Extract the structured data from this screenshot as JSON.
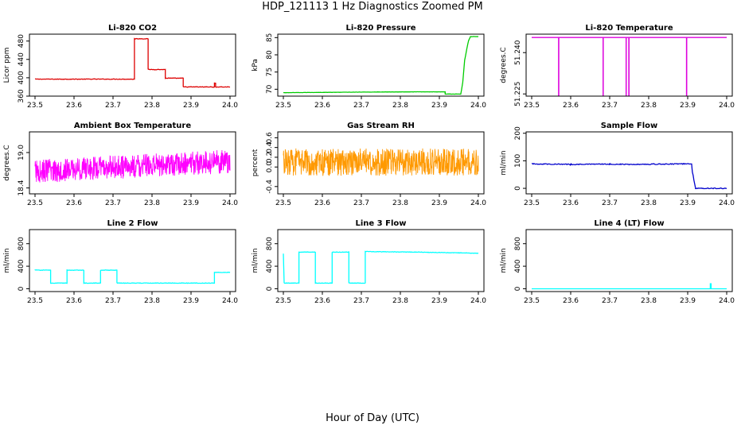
{
  "page": {
    "title": "HDP_121113  1 Hz Diagnostics Zoomed PM",
    "xlabel": "Hour of Day (UTC)"
  },
  "chart_data": [
    {
      "type": "line",
      "title": "Li-820 CO2",
      "ylabel": "Licor ppm",
      "color": "#dd0000",
      "xlim": [
        23.5,
        24.0
      ],
      "ylim": [
        360,
        495
      ],
      "yticks": [
        360,
        400,
        440,
        480
      ],
      "xticks": [
        23.5,
        23.6,
        23.7,
        23.8,
        23.9,
        24.0
      ],
      "noise": 0.6,
      "mode": "line",
      "x": [
        23.5,
        23.755,
        23.755,
        23.79,
        23.79,
        23.834,
        23.834,
        23.88,
        23.88,
        23.96,
        23.96,
        23.963,
        23.963,
        24.0
      ],
      "y": [
        397,
        397,
        485,
        485,
        418,
        418,
        399,
        399,
        380,
        380,
        388,
        388,
        380,
        380
      ]
    },
    {
      "type": "line",
      "title": "Li-820 Pressure",
      "ylabel": "kPa",
      "color": "#00cc00",
      "xlim": [
        23.5,
        24.0
      ],
      "ylim": [
        68,
        86
      ],
      "yticks": [
        70,
        75,
        80,
        85
      ],
      "xticks": [
        23.5,
        23.6,
        23.7,
        23.8,
        23.9,
        24.0
      ],
      "noise": 0.03,
      "mode": "line",
      "x": [
        23.5,
        23.67,
        23.84,
        23.915,
        23.915,
        23.955,
        23.96,
        23.965,
        23.97,
        23.975,
        23.98,
        24.0
      ],
      "y": [
        69.0,
        69.15,
        69.25,
        69.25,
        68.6,
        68.6,
        72.0,
        78.5,
        81.5,
        84.2,
        85.3,
        85.3
      ]
    },
    {
      "type": "line",
      "title": "Li-820 Temperature",
      "ylabel": "degrees.C",
      "color": "#dd00dd",
      "xlim": [
        23.5,
        24.0
      ],
      "ylim": [
        51.2242,
        51.2467
      ],
      "yticks": [
        51.225,
        51.24
      ],
      "ytick_labels": [
        "51.225",
        "51.240"
      ],
      "xticks": [
        23.5,
        23.6,
        23.7,
        23.8,
        23.9,
        24.0
      ],
      "noise": 0,
      "mode": "line",
      "x": [
        23.5,
        23.569,
        23.569,
        23.5695,
        23.5695,
        23.683,
        23.683,
        23.6835,
        23.6835,
        23.742,
        23.742,
        23.7425,
        23.7425,
        23.749,
        23.749,
        23.7495,
        23.7495,
        23.897,
        23.897,
        23.8975,
        23.8975,
        24.0
      ],
      "y": [
        51.2455,
        51.2455,
        51.2245,
        51.2245,
        51.2455,
        51.2455,
        51.2245,
        51.2245,
        51.2455,
        51.2455,
        51.2245,
        51.2245,
        51.2455,
        51.2455,
        51.2245,
        51.2245,
        51.2455,
        51.2455,
        51.2245,
        51.2245,
        51.2455,
        51.2455
      ]
    },
    {
      "type": "line",
      "title": "Ambient Box Temperature",
      "ylabel": "degrees.C",
      "color": "#ff00ff",
      "xlim": [
        23.5,
        24.0
      ],
      "ylim": [
        18.3,
        19.35
      ],
      "yticks": [
        18.4,
        19.0
      ],
      "ytick_labels": [
        "18.4",
        "19.0"
      ],
      "xticks": [
        23.5,
        23.6,
        23.7,
        23.8,
        23.9,
        24.0
      ],
      "noise": 0.2,
      "mode": "dense",
      "x": [
        23.5,
        24.0
      ],
      "y": [
        18.68,
        18.85
      ]
    },
    {
      "type": "line",
      "title": "Gas Stream RH",
      "ylabel": "percent",
      "color": "#ff9900",
      "xlim": [
        23.5,
        24.0
      ],
      "ylim": [
        -0.55,
        0.72
      ],
      "yticks": [
        -0.4,
        0.0,
        0.2,
        0.4,
        0.6
      ],
      "ytick_labels": [
        "-0.4",
        "0.0",
        "0.2",
        "0.4",
        "0.6"
      ],
      "xticks": [
        23.5,
        23.6,
        23.7,
        23.8,
        23.9,
        24.0
      ],
      "noise": 0.28,
      "mode": "dense",
      "x": [
        23.5,
        24.0
      ],
      "y": [
        0.1,
        0.1
      ]
    },
    {
      "type": "line",
      "title": "Sample Flow",
      "ylabel": "ml/min",
      "color": "#0000cc",
      "xlim": [
        23.5,
        24.0
      ],
      "ylim": [
        -20,
        205
      ],
      "yticks": [
        0,
        100,
        200
      ],
      "xticks": [
        23.5,
        23.6,
        23.7,
        23.8,
        23.9,
        24.0
      ],
      "noise": 1.5,
      "mode": "line",
      "x": [
        23.5,
        23.6,
        23.7,
        23.75,
        23.91,
        23.912,
        23.92,
        24.0
      ],
      "y": [
        89,
        87,
        88,
        87,
        89,
        60,
        0,
        0
      ]
    },
    {
      "type": "line",
      "title": "Line 2 Flow",
      "ylabel": "ml/min",
      "color": "#00ffff",
      "xlim": [
        23.5,
        24.0
      ],
      "ylim": [
        -50,
        1050
      ],
      "yticks": [
        0,
        400,
        800
      ],
      "xticks": [
        23.5,
        23.6,
        23.7,
        23.8,
        23.9,
        24.0
      ],
      "noise": 4,
      "mode": "line",
      "x": [
        23.5,
        23.5,
        23.54,
        23.54,
        23.582,
        23.582,
        23.625,
        23.625,
        23.668,
        23.668,
        23.71,
        23.71,
        23.96,
        23.96,
        24.0
      ],
      "y": [
        100,
        330,
        330,
        100,
        100,
        330,
        330,
        100,
        100,
        330,
        330,
        100,
        100,
        290,
        290
      ]
    },
    {
      "type": "line",
      "title": "Line 3 Flow",
      "ylabel": "ml/min",
      "color": "#00ffff",
      "xlim": [
        23.5,
        24.0
      ],
      "ylim": [
        -50,
        1050
      ],
      "yticks": [
        0,
        400,
        800
      ],
      "xticks": [
        23.5,
        23.6,
        23.7,
        23.8,
        23.9,
        24.0
      ],
      "noise": 4,
      "mode": "line",
      "x": [
        23.5,
        23.5,
        23.502,
        23.502,
        23.54,
        23.54,
        23.582,
        23.582,
        23.625,
        23.625,
        23.668,
        23.668,
        23.71,
        23.71,
        23.85,
        24.0
      ],
      "y": [
        620,
        620,
        100,
        100,
        100,
        650,
        650,
        100,
        100,
        650,
        650,
        100,
        100,
        660,
        650,
        630
      ]
    },
    {
      "type": "line",
      "title": "Line 4 (LT) Flow",
      "ylabel": "ml/min",
      "color": "#00ffff",
      "xlim": [
        23.5,
        24.0
      ],
      "ylim": [
        -50,
        1050
      ],
      "yticks": [
        0,
        400,
        800
      ],
      "xticks": [
        23.5,
        23.6,
        23.7,
        23.8,
        23.9,
        24.0
      ],
      "noise": 0,
      "mode": "line",
      "x": [
        23.5,
        23.958,
        23.958,
        23.96,
        23.96,
        24.0
      ],
      "y": [
        0,
        0,
        90,
        90,
        0,
        0
      ]
    }
  ]
}
